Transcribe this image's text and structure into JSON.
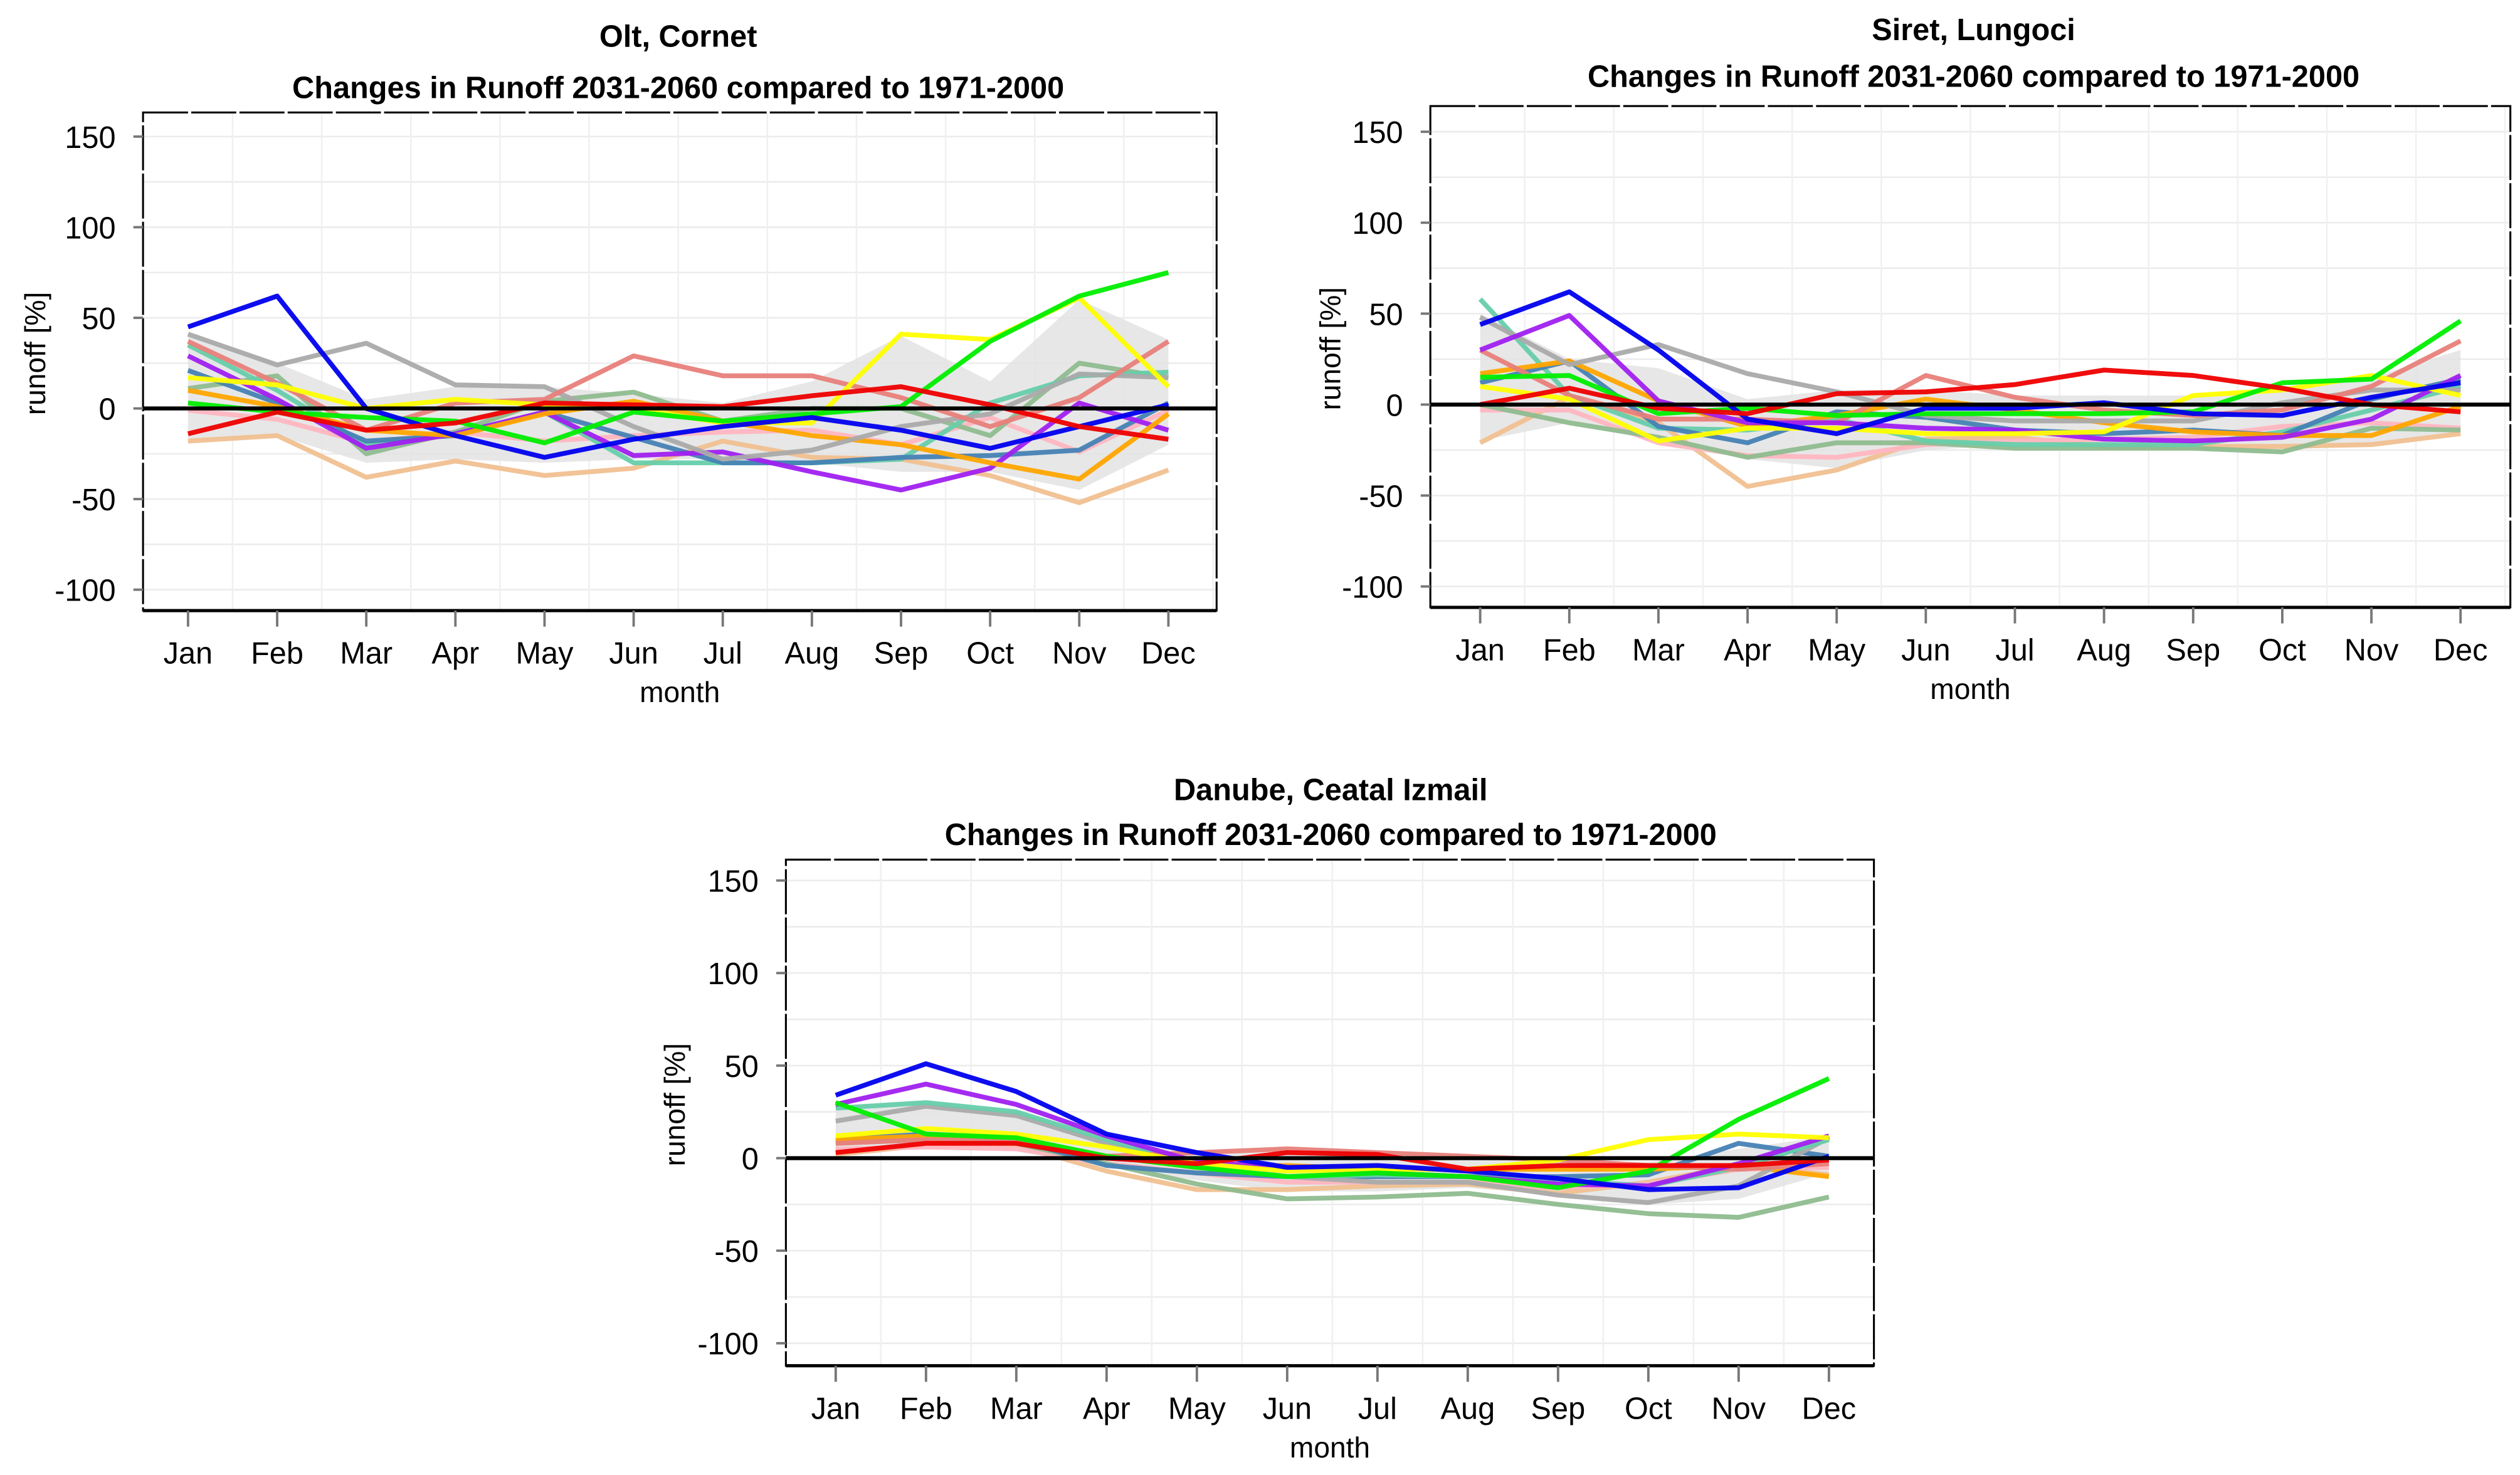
{
  "colors": {
    "blue": "#0000ee",
    "purple": "#a020f0",
    "gray": "#aaaaaa",
    "green": "#00ee00",
    "yellow": "#ffff00",
    "red": "#ee0000",
    "salmon": "#e8807a",
    "orange": "#ffa500",
    "steelblue": "#4682b4",
    "teal": "#66cdaa",
    "darkseagreen": "#8fbc8f",
    "pink": "#ffb6c1",
    "tan": "#f0c090",
    "band": "#e3e3e3",
    "zero_line": "#000000"
  },
  "chart_data": [
    {
      "type": "line",
      "title": "Olt, Cornet",
      "subtitle": "Changes in Runoff 2031-2060 compared to 1971-2000",
      "xlabel": "month",
      "ylabel": "runoff [%]",
      "ylim": [
        -110,
        160
      ],
      "yticks": [
        -100,
        -50,
        0,
        50,
        100,
        150
      ],
      "grid": true,
      "categories": [
        "Jan",
        "Feb",
        "Mar",
        "Apr",
        "May",
        "Jun",
        "Jul",
        "Aug",
        "Sep",
        "Oct",
        "Nov",
        "Dec"
      ],
      "band": {
        "upper": [
          40,
          25,
          5,
          12,
          12,
          8,
          3,
          15,
          40,
          15,
          60,
          38
        ],
        "lower": [
          -17,
          -15,
          -30,
          -28,
          -30,
          -28,
          -28,
          -30,
          -35,
          -35,
          -45,
          -20
        ]
      },
      "series": [
        {
          "color": "tan",
          "values": [
            -18,
            -15,
            -38,
            -29,
            -37,
            -33,
            -18,
            -27,
            -28,
            -37,
            -52,
            -34
          ]
        },
        {
          "color": "pink",
          "values": [
            -1,
            -6,
            -19,
            -13,
            -18,
            -15,
            -13,
            -12,
            -20,
            -5,
            -24,
            -1
          ]
        },
        {
          "color": "darkseagreen",
          "values": [
            11,
            18,
            -25,
            -13,
            4,
            9,
            -7,
            0,
            0,
            -15,
            25,
            17
          ]
        },
        {
          "color": "teal",
          "values": [
            35,
            10,
            -20,
            -14,
            -2,
            -30,
            -30,
            -30,
            -28,
            3,
            18,
            20
          ]
        },
        {
          "color": "steelblue",
          "values": [
            21,
            3,
            -18,
            -15,
            -2,
            -16,
            -30,
            -30,
            -27,
            -26,
            -23,
            3
          ]
        },
        {
          "color": "purple",
          "values": [
            29,
            5,
            -22,
            -14,
            -2,
            -26,
            -24,
            -35,
            -45,
            -33,
            3,
            -12
          ]
        },
        {
          "color": "orange",
          "values": [
            10,
            1,
            -12,
            -15,
            -3,
            4,
            -7,
            -15,
            -20,
            -30,
            -39,
            -3
          ]
        },
        {
          "color": "gray",
          "values": [
            41,
            24,
            36,
            13,
            12,
            -10,
            -28,
            -23,
            -10,
            -3,
            19,
            17
          ]
        },
        {
          "color": "salmon",
          "values": [
            37,
            14,
            -12,
            3,
            5,
            29,
            18,
            18,
            6,
            -10,
            6,
            37
          ]
        },
        {
          "color": "yellow",
          "values": [
            17,
            13,
            0,
            5,
            2,
            0,
            -8,
            -8,
            41,
            38,
            61,
            12
          ]
        },
        {
          "color": "green",
          "values": [
            3,
            -2,
            -5,
            -7,
            -19,
            -2,
            -7,
            -3,
            1,
            37,
            62,
            75
          ]
        },
        {
          "color": "blue",
          "values": [
            45,
            62,
            0,
            -15,
            -27,
            -17,
            -10,
            -5,
            -12,
            -22,
            -10,
            2
          ]
        },
        {
          "color": "red",
          "values": [
            -14,
            -2,
            -12,
            -8,
            3,
            2,
            1,
            7,
            12,
            2,
            -10,
            -17
          ]
        }
      ]
    },
    {
      "type": "line",
      "title": "Siret, Lungoci",
      "subtitle": "Changes in Runoff 2031-2060 compared to 1971-2000",
      "xlabel": "month",
      "ylabel": "runoff [%]",
      "ylim": [
        -110,
        160
      ],
      "yticks": [
        -100,
        -50,
        0,
        50,
        100,
        150
      ],
      "grid": true,
      "categories": [
        "Jan",
        "Feb",
        "Mar",
        "Apr",
        "May",
        "Jun",
        "Jul",
        "Aug",
        "Sep",
        "Oct",
        "Nov",
        "Dec"
      ],
      "band": {
        "upper": [
          50,
          25,
          20,
          3,
          8,
          8,
          5,
          5,
          5,
          10,
          15,
          30
        ],
        "lower": [
          -20,
          -10,
          -20,
          -30,
          -35,
          -25,
          -22,
          -24,
          -24,
          -25,
          -22,
          -15
        ]
      },
      "series": [
        {
          "color": "tan",
          "values": [
            -21,
            4,
            -10,
            -45,
            -36,
            -19,
            -18,
            -23,
            -23,
            -23,
            -22,
            -16
          ]
        },
        {
          "color": "pink",
          "values": [
            -3,
            -3,
            -21,
            -28,
            -29,
            -22,
            -20,
            -19,
            -18,
            -12,
            -10,
            -13
          ]
        },
        {
          "color": "darkseagreen",
          "values": [
            0,
            -10,
            -18,
            -29,
            -21,
            -21,
            -24,
            -24,
            -24,
            -26,
            -13,
            -14
          ]
        },
        {
          "color": "teal",
          "values": [
            58,
            5,
            -13,
            -14,
            -8,
            -20,
            -22,
            -22,
            -22,
            -15,
            -3,
            10
          ]
        },
        {
          "color": "steelblue",
          "values": [
            12,
            24,
            -12,
            -21,
            -4,
            -7,
            -14,
            -16,
            -14,
            -17,
            3,
            14
          ]
        },
        {
          "color": "orange",
          "values": [
            17,
            24,
            2,
            -12,
            -6,
            3,
            -3,
            -10,
            -15,
            -17,
            -17,
            -1
          ]
        },
        {
          "color": "gray",
          "values": [
            48,
            22,
            33,
            17,
            7,
            -6,
            -9,
            -9,
            -9,
            1,
            8,
            8
          ]
        },
        {
          "color": "salmon",
          "values": [
            30,
            5,
            -8,
            -8,
            -10,
            16,
            4,
            -3,
            -6,
            -3,
            10,
            35
          ]
        },
        {
          "color": "purple",
          "values": [
            30,
            49,
            2,
            -10,
            -10,
            -13,
            -14,
            -19,
            -20,
            -18,
            -8,
            16
          ]
        },
        {
          "color": "yellow",
          "values": [
            10,
            3,
            -20,
            -13,
            -13,
            -16,
            -16,
            -15,
            5,
            8,
            16,
            5
          ]
        },
        {
          "color": "green",
          "values": [
            15,
            16,
            -5,
            -2,
            -6,
            -5,
            -5,
            -5,
            -4,
            12,
            14,
            46
          ]
        },
        {
          "color": "blue",
          "values": [
            44,
            62,
            30,
            -8,
            -16,
            -2,
            -2,
            1,
            -5,
            -6,
            4,
            12
          ]
        },
        {
          "color": "red",
          "values": [
            0,
            9,
            -2,
            -5,
            6,
            7,
            11,
            19,
            16,
            9,
            0,
            -4
          ]
        }
      ]
    },
    {
      "type": "line",
      "title": "Danube, Ceatal Izmail",
      "subtitle": "Changes in Runoff 2031-2060 compared to 1971-2000",
      "xlabel": "month",
      "ylabel": "runoff [%]",
      "ylim": [
        -110,
        160
      ],
      "yticks": [
        -100,
        -50,
        0,
        50,
        100,
        150
      ],
      "grid": true,
      "categories": [
        "Jan",
        "Feb",
        "Mar",
        "Apr",
        "May",
        "Jun",
        "Jul",
        "Aug",
        "Sep",
        "Oct",
        "Nov",
        "Dec"
      ],
      "band": {
        "upper": [
          28,
          30,
          25,
          10,
          3,
          3,
          2,
          0,
          -2,
          -2,
          5,
          12
        ],
        "lower": [
          3,
          6,
          5,
          -5,
          -12,
          -18,
          -18,
          -16,
          -20,
          -25,
          -22,
          -8
        ]
      },
      "series": [
        {
          "color": "tan",
          "values": [
            2,
            7,
            7,
            -7,
            -17,
            -17,
            -15,
            -14,
            -19,
            -13,
            -4,
            -9
          ]
        },
        {
          "color": "pink",
          "values": [
            5,
            6,
            5,
            -3,
            -8,
            -13,
            -13,
            -13,
            -16,
            -14,
            -6,
            -5
          ]
        },
        {
          "color": "darkseagreen",
          "values": [
            8,
            10,
            8,
            -3,
            -14,
            -22,
            -21,
            -19,
            -25,
            -30,
            -32,
            -21
          ]
        },
        {
          "color": "steelblue",
          "values": [
            10,
            13,
            10,
            -4,
            -8,
            -10,
            -10,
            -10,
            -10,
            -9,
            8,
            1
          ]
        },
        {
          "color": "orange",
          "values": [
            10,
            12,
            11,
            1,
            -5,
            -4,
            -6,
            -6,
            -6,
            -6,
            -4,
            -10
          ]
        },
        {
          "color": "gray",
          "values": [
            20,
            28,
            23,
            8,
            -3,
            -10,
            -13,
            -13,
            -20,
            -24,
            -15,
            11
          ]
        },
        {
          "color": "teal",
          "values": [
            27,
            30,
            25,
            10,
            -4,
            -10,
            -9,
            -10,
            -12,
            -15,
            -5,
            10
          ]
        },
        {
          "color": "salmon",
          "values": [
            8,
            10,
            9,
            1,
            3,
            5,
            3,
            1,
            -1,
            -4,
            -6,
            -3
          ]
        },
        {
          "color": "purple",
          "values": [
            29,
            40,
            29,
            12,
            -2,
            -5,
            -8,
            -10,
            -14,
            -15,
            -3,
            12
          ]
        },
        {
          "color": "yellow",
          "values": [
            12,
            16,
            13,
            6,
            -3,
            -7,
            -6,
            -6,
            -1,
            10,
            13,
            11
          ]
        },
        {
          "color": "green",
          "values": [
            30,
            13,
            11,
            1,
            -5,
            -10,
            -8,
            -10,
            -16,
            -7,
            21,
            43
          ]
        },
        {
          "color": "blue",
          "values": [
            34,
            51,
            36,
            13,
            3,
            -5,
            -4,
            -7,
            -11,
            -17,
            -16,
            1
          ]
        },
        {
          "color": "red",
          "values": [
            3,
            8,
            8,
            0,
            -3,
            3,
            2,
            -6,
            -4,
            -4,
            -4,
            -1
          ]
        }
      ]
    }
  ]
}
